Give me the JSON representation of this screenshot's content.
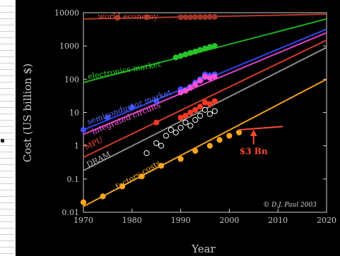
{
  "chart_data": {
    "type": "line",
    "ylabel": "Cost (US billion $)",
    "xlabel": "Year",
    "xlim": [
      1970,
      2020
    ],
    "ylim": [
      0.01,
      10000
    ],
    "y_scale": "log",
    "grid": false,
    "x_ticks": [
      "1970",
      "1980",
      "1990",
      "2000",
      "2010",
      "2020"
    ],
    "y_ticks": [
      "0.01",
      "0.1",
      "1",
      "10",
      "100",
      "1000",
      "10000"
    ],
    "y_tick_values": [
      0.01,
      0.1,
      1,
      10,
      100,
      1000,
      10000
    ],
    "x_tick_values": [
      1970,
      1980,
      1990,
      2000,
      2010,
      2020
    ],
    "series": [
      {
        "name": "world economy",
        "color": "#b53a2a",
        "label_color": "#e0503a",
        "line": [
          [
            1970,
            6500
          ],
          [
            2020,
            9000
          ]
        ],
        "points": [
          [
            1977,
            7000
          ],
          [
            1983,
            7300
          ],
          [
            1990,
            7300
          ],
          [
            1991,
            7300
          ],
          [
            1992,
            7300
          ],
          [
            1993,
            7400
          ],
          [
            1994,
            7400
          ],
          [
            1995,
            7400
          ],
          [
            1996,
            7500
          ],
          [
            1997,
            7500
          ]
        ],
        "marker_fill": "#a33426"
      },
      {
        "name": "electronics market",
        "color": "#1fae1f",
        "label_color": "#2ad62a",
        "line": [
          [
            1970,
            80
          ],
          [
            2020,
            6500
          ]
        ],
        "points": [
          [
            1989,
            450
          ],
          [
            1990,
            500
          ],
          [
            1991,
            560
          ],
          [
            1992,
            620
          ],
          [
            1993,
            680
          ],
          [
            1994,
            760
          ],
          [
            1995,
            840
          ],
          [
            1996,
            930
          ],
          [
            1997,
            1000
          ]
        ],
        "marker_fill": "#27c427"
      },
      {
        "name": "semiconductor market",
        "color": "#3344ee",
        "label_color": "#5b6cff",
        "line": [
          [
            1970,
            3.0
          ],
          [
            2020,
            3200
          ]
        ],
        "points": [
          [
            1970,
            3
          ],
          [
            1975,
            7
          ],
          [
            1980,
            14
          ],
          [
            1985,
            22
          ],
          [
            1990,
            50
          ],
          [
            1992,
            60
          ],
          [
            1993,
            80
          ],
          [
            1994,
            100
          ],
          [
            1995,
            140
          ],
          [
            1996,
            130
          ],
          [
            1997,
            140
          ]
        ],
        "marker_fill": "#3d4fff"
      },
      {
        "name": "integrated circuits",
        "color": "#e040c8",
        "label_color": "#ff5ae0",
        "line": [
          [
            1970,
            2.2
          ],
          [
            2020,
            2500
          ]
        ],
        "points": [
          [
            1990,
            40
          ],
          [
            1991,
            45
          ],
          [
            1992,
            55
          ],
          [
            1993,
            70
          ],
          [
            1994,
            90
          ],
          [
            1995,
            120
          ],
          [
            1996,
            110
          ],
          [
            1997,
            120
          ]
        ],
        "marker_fill": "#ff4fd8"
      },
      {
        "name": "MPU",
        "color": "#d63a2a",
        "label_color": "#ff4a30",
        "line": [
          [
            1970,
            0.45
          ],
          [
            2020,
            1500
          ]
        ],
        "points": [
          [
            1985,
            5
          ],
          [
            1990,
            7
          ],
          [
            1991,
            8
          ],
          [
            1992,
            10
          ],
          [
            1993,
            12
          ],
          [
            1994,
            15
          ],
          [
            1995,
            20
          ],
          [
            1996,
            18
          ],
          [
            1997,
            22
          ]
        ],
        "marker_fill": "#ff3a22"
      },
      {
        "name": "DRAM",
        "color": "#8a8a8a",
        "label_color": "#b8b8b8",
        "line": [
          [
            1970,
            0.18
          ],
          [
            2020,
            900
          ]
        ],
        "points": [
          [
            1983,
            0.6
          ],
          [
            1985,
            1.2
          ],
          [
            1986,
            1.0
          ],
          [
            1987,
            2.0
          ],
          [
            1988,
            3.0
          ],
          [
            1989,
            2.5
          ],
          [
            1990,
            3.5
          ],
          [
            1991,
            5
          ],
          [
            1992,
            4
          ],
          [
            1993,
            6
          ],
          [
            1994,
            8
          ],
          [
            1995,
            12
          ],
          [
            1996,
            9
          ],
          [
            1997,
            11
          ]
        ],
        "marker_fill": "#000000",
        "marker_stroke": "#ffffff"
      },
      {
        "name": "factory costs",
        "color": "#f0a020",
        "label_color": "#ffb030",
        "line": [
          [
            1970,
            0.015
          ],
          [
            2020,
            100
          ]
        ],
        "points": [
          [
            1970,
            0.02
          ],
          [
            1974,
            0.03
          ],
          [
            1978,
            0.06
          ],
          [
            1982,
            0.12
          ],
          [
            1986,
            0.25
          ],
          [
            1990,
            0.4
          ],
          [
            1993,
            0.7
          ],
          [
            1996,
            1.0
          ],
          [
            1998,
            1.5
          ],
          [
            2000,
            2.0
          ],
          [
            2002,
            2.5
          ]
        ],
        "marker_fill": "#ffa520"
      }
    ],
    "cap": {
      "label": "$3 Bn",
      "color": "#ff4a30",
      "line": [
        [
          2002,
          3
        ],
        [
          2011,
          3.8
        ]
      ],
      "arrow": {
        "x": 2005,
        "from": 1.1,
        "to": 2.9
      }
    },
    "annotations": [
      {
        "text": "© D.J. Paul 2003",
        "position": "bottom-right",
        "color": "#d0d0d0"
      }
    ]
  }
}
